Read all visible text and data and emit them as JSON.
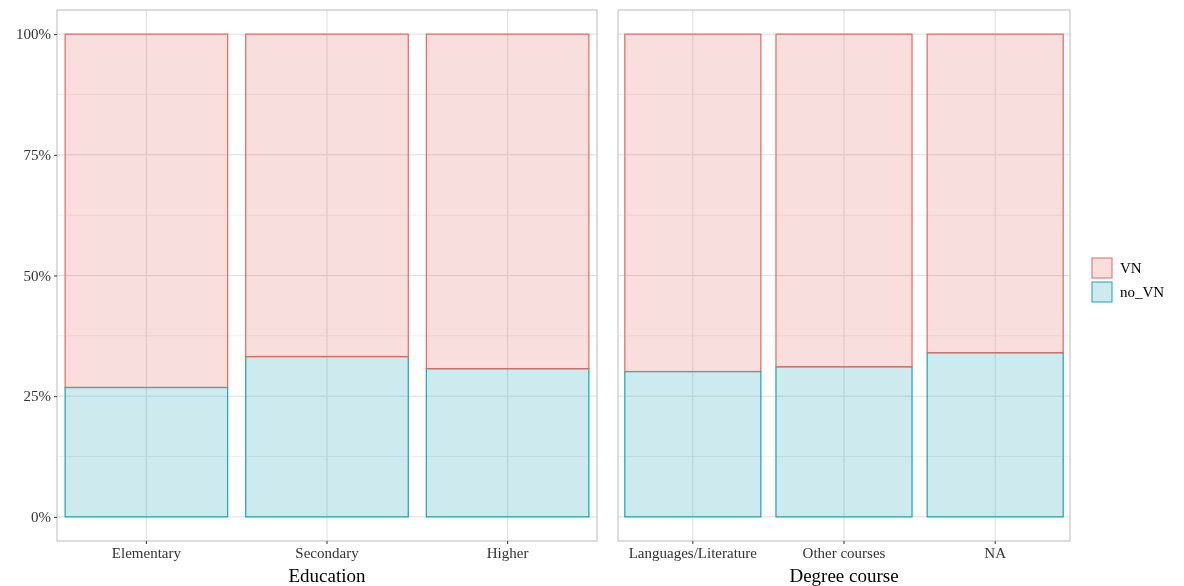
{
  "chart_data": [
    {
      "type": "bar",
      "xlabel": "Education",
      "categories": [
        "Elementary",
        "Secondary",
        "Higher"
      ],
      "stacked": true,
      "grid": true,
      "legend": false,
      "ylim": [
        -5,
        105
      ],
      "yticks": [
        {
          "value": 0,
          "label": "0%"
        },
        {
          "value": 25,
          "label": "25%"
        },
        {
          "value": 50,
          "label": "50%"
        },
        {
          "value": 75,
          "label": "75%"
        },
        {
          "value": 100,
          "label": "100%"
        }
      ],
      "series": [
        {
          "color": "#1ba3b0",
          "values": [
            26.8,
            33.2,
            30.7
          ]
        },
        {
          "color": "#e06a60",
          "values": [
            73.2,
            66.8,
            69.3
          ]
        }
      ]
    },
    {
      "type": "bar",
      "xlabel": "Degree course",
      "categories": [
        "Languages/Literature",
        "Other courses",
        "NA"
      ],
      "stacked": true,
      "grid": true,
      "legend": "right",
      "tick_labels": "x",
      "ylim": [
        -5,
        105
      ],
      "yticks": [
        0,
        25,
        50,
        75,
        100
      ],
      "series": [
        {
          "name": "no_VN",
          "color": "#1ba3b0",
          "values": [
            30.1,
            31.1,
            34.0
          ]
        },
        {
          "name": "VN",
          "color": "#e06a60",
          "values": [
            69.9,
            68.9,
            66.0
          ]
        }
      ]
    }
  ]
}
